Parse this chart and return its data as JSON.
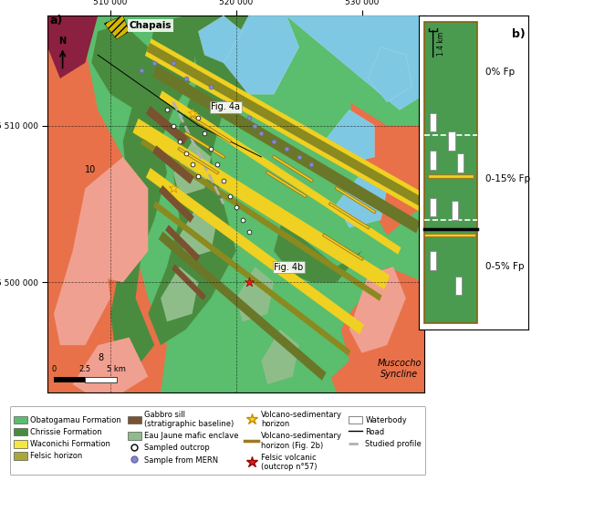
{
  "fig_width": 6.51,
  "fig_height": 5.73,
  "dpi": 100,
  "colors": {
    "obatogamau": "#5BBD6E",
    "chrissie": "#4A8C3F",
    "waconichi": "#F5E642",
    "felsic_horizon": "#A8A83A",
    "gabbro_sill": "#7A5230",
    "eau_jaune": "#8FBD8A",
    "orange_bg": "#E8714A",
    "pink_bg": "#F0A090",
    "blue_water": "#7EC8E3",
    "light_blue": "#A8D8EA",
    "dark_maroon": "#8B2040",
    "yellow_strip": "#F0D020",
    "olive_strip": "#8A8A20",
    "map_bg": "#5BBD6E",
    "inset_bg": "#4A9A50",
    "white": "#FFFFFF",
    "black": "#000000",
    "gray_dash": "#B0B0B0",
    "mern_blue": "#8888CC",
    "dark_olive": "#6B7728",
    "hatch_yellow": "#D4B800"
  },
  "map_xlim": [
    505000,
    535000
  ],
  "map_ylim": [
    5493000,
    5517000
  ],
  "x_ticks": [
    510000,
    520000,
    530000
  ],
  "x_tick_labels": [
    "510 000",
    "520 000",
    "530 000"
  ],
  "y_ticks": [
    5500000,
    5510000
  ],
  "y_tick_labels": [
    "5 500 000",
    "5 510 000"
  ],
  "inset_b": {
    "zone_labels": [
      "0% Fp",
      "0-15% Fp",
      "0-5% Fp"
    ],
    "scale_label": "1.4 km",
    "label": "b)"
  },
  "map_label": "a)",
  "chapais_label": "Chapais",
  "fig4a_label": "Fig. 4a",
  "fig4b_label": "Fig. 4b",
  "muscocho_label": "Muscocho\nSyncline",
  "north_label": "N",
  "label_10": "10",
  "label_8": "8"
}
